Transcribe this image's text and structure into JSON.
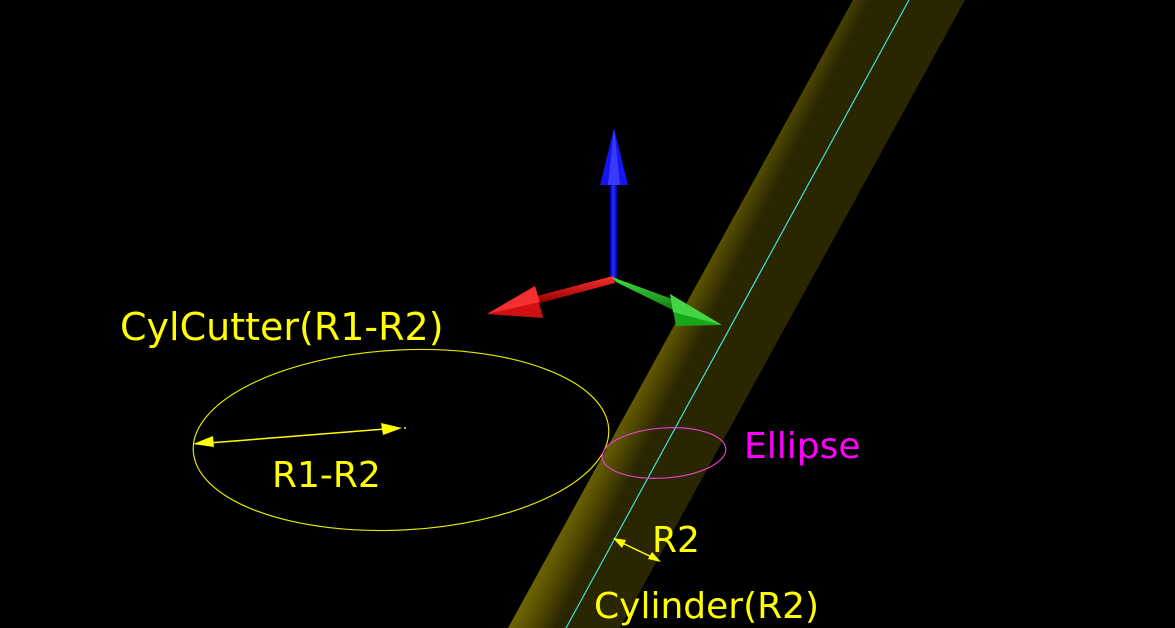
{
  "labels": {
    "cyl_cutter": "CylCutter(R1-R2)",
    "r1_minus_r2": "R1-R2",
    "ellipse": "Ellipse",
    "r2": "R2",
    "cylinder": "Cylinder(R2)"
  },
  "colors": {
    "background": "#000000",
    "label_yellow": "#ffff00",
    "label_magenta": "#ff00ff",
    "cutter_circle": "#e6e600",
    "ellipse": "#e040c0",
    "cylinder_body": "#6e6400",
    "cylinder_axis": "#40e0e0",
    "axis_x": "#e01010",
    "axis_y": "#20c020",
    "axis_z": "#1010e0"
  }
}
